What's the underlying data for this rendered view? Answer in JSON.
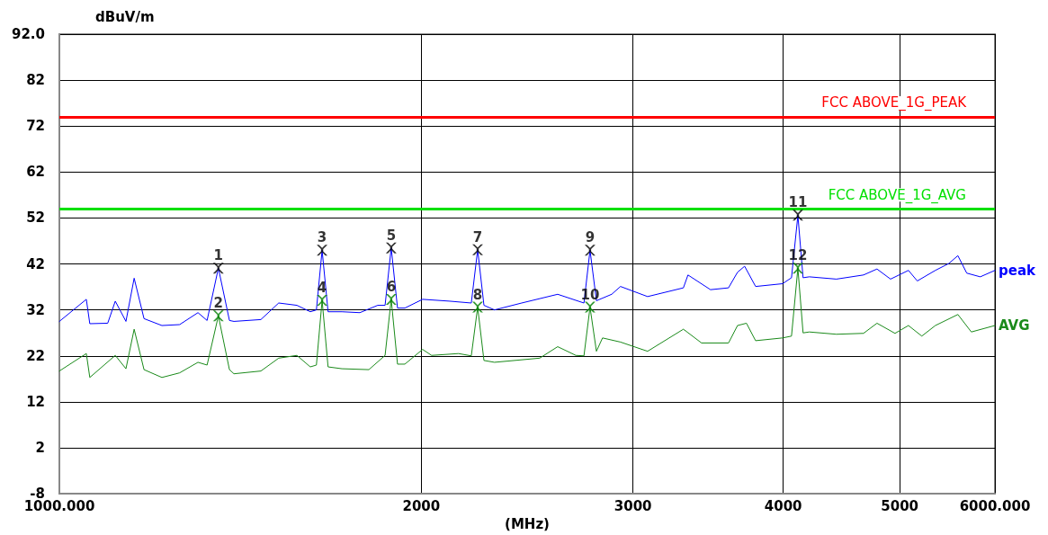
{
  "chart_data": {
    "type": "line",
    "xlabel": "(MHz)",
    "ylabel": "dBuV/m",
    "log": "x",
    "xlim": [
      1000,
      6000
    ],
    "xticks": [
      {
        "value": 1000,
        "label": "1000.000"
      },
      2000,
      3000,
      4000,
      5000,
      {
        "value": 6000,
        "label": "6000.000"
      }
    ],
    "ylim": [
      -8,
      92
    ],
    "yticks": [
      -8,
      2,
      12,
      22,
      32,
      42,
      52,
      62,
      72,
      82,
      {
        "value": 92,
        "label": "92.0"
      }
    ],
    "grid": true,
    "legend": false,
    "marker": "none",
    "line_style": "solid",
    "series": [
      {
        "name": "peak",
        "color": "#0000ff",
        "x": [
          1000,
          1053,
          1060,
          1097,
          1113,
          1136,
          1154,
          1176,
          1217,
          1259,
          1304,
          1327,
          1356,
          1385,
          1397,
          1471,
          1522,
          1576,
          1617,
          1636,
          1654,
          1673,
          1718,
          1778,
          1840,
          1866,
          1888,
          1911,
          1938,
          2005,
          2112,
          2201,
          2228,
          2255,
          2301,
          2424,
          2597,
          2731,
          2763,
          2797,
          2880,
          2929,
          3085,
          3304,
          3333,
          3480,
          3602,
          3665,
          3715,
          3794,
          3995,
          4064,
          4114,
          4155,
          4205,
          4429,
          4665,
          4787,
          4913,
          5084,
          5171,
          5353,
          5493,
          5589,
          5685,
          5834,
          6000
        ],
        "values": [
          29.5,
          34.3,
          29.0,
          29.1,
          33.9,
          29.5,
          38.9,
          30.1,
          28.6,
          28.8,
          31.4,
          29.7,
          41.1,
          29.7,
          29.5,
          29.9,
          33.5,
          33.0,
          31.6,
          32.0,
          45.0,
          31.6,
          31.6,
          31.4,
          33.0,
          33.0,
          45.5,
          32.4,
          32.4,
          34.3,
          33.9,
          33.5,
          45.1,
          33.0,
          32.0,
          33.5,
          35.4,
          33.5,
          45.0,
          34.0,
          35.4,
          37.1,
          34.9,
          36.8,
          39.6,
          36.4,
          36.8,
          40.2,
          41.5,
          37.1,
          37.7,
          39.0,
          52.6,
          39.0,
          39.2,
          38.7,
          39.6,
          40.9,
          38.7,
          40.6,
          38.3,
          40.6,
          42.1,
          43.8,
          40.0,
          39.2,
          40.6
        ]
      },
      {
        "name": "AVG",
        "color": "#1a8a1a",
        "x": [
          1000,
          1053,
          1060,
          1113,
          1136,
          1154,
          1176,
          1217,
          1259,
          1304,
          1327,
          1356,
          1385,
          1397,
          1471,
          1522,
          1576,
          1617,
          1636,
          1654,
          1673,
          1718,
          1809,
          1866,
          1888,
          1911,
          1938,
          2005,
          2040,
          2148,
          2201,
          2228,
          2255,
          2301,
          2509,
          2597,
          2689,
          2731,
          2763,
          2797,
          2830,
          2929,
          3085,
          3304,
          3421,
          3602,
          3665,
          3728,
          3794,
          3995,
          4064,
          4114,
          4155,
          4205,
          4429,
          4665,
          4787,
          4955,
          5084,
          5216,
          5353,
          5589,
          5735,
          6000
        ],
        "values": [
          18.7,
          22.5,
          17.3,
          22.1,
          19.2,
          27.8,
          19.0,
          17.3,
          18.3,
          20.6,
          20.0,
          30.7,
          19.0,
          18.1,
          18.7,
          21.5,
          22.1,
          19.6,
          20.0,
          34.1,
          19.6,
          19.2,
          19.0,
          22.1,
          34.3,
          20.2,
          20.2,
          23.4,
          22.1,
          22.5,
          22.0,
          32.6,
          21.0,
          20.6,
          21.5,
          24.0,
          22.1,
          22.0,
          32.6,
          23.0,
          25.9,
          25.0,
          23.0,
          27.8,
          24.8,
          24.8,
          28.6,
          29.1,
          25.3,
          25.9,
          26.3,
          41.1,
          27.0,
          27.2,
          26.7,
          26.9,
          29.1,
          26.9,
          28.6,
          26.3,
          28.6,
          31.0,
          27.2,
          28.6
        ]
      },
      {
        "type": "scatter",
        "marker": "cross",
        "color": "#000000",
        "x": [
          1356,
          1654,
          1888,
          2228,
          2763,
          4114
        ],
        "values": [
          41.1,
          45.0,
          45.5,
          45.1,
          45.0,
          52.6
        ]
      },
      {
        "type": "scatter",
        "marker": "cross",
        "color": "#008000",
        "x": [
          1356,
          1654,
          1888,
          2228,
          2763,
          4114
        ],
        "values": [
          30.7,
          34.1,
          34.3,
          32.6,
          32.6,
          41.1
        ]
      }
    ],
    "annotations": [
      {
        "text": "1",
        "x": 1356,
        "y": 41.1
      },
      {
        "text": "2",
        "x": 1356,
        "y": 30.7
      },
      {
        "text": "3",
        "x": 1654,
        "y": 45.0
      },
      {
        "text": "4",
        "x": 1654,
        "y": 34.1
      },
      {
        "text": "5",
        "x": 1888,
        "y": 45.5
      },
      {
        "text": "6",
        "x": 1888,
        "y": 34.3
      },
      {
        "text": "7",
        "x": 2228,
        "y": 45.1
      },
      {
        "text": "8",
        "x": 2228,
        "y": 32.6
      },
      {
        "text": "9",
        "x": 2763,
        "y": 45.0
      },
      {
        "text": "10",
        "x": 2763,
        "y": 32.6
      },
      {
        "text": "11",
        "x": 4114,
        "y": 52.6
      },
      {
        "text": "12",
        "x": 4114,
        "y": 41.1
      }
    ],
    "ref_lines": [
      {
        "axis": "y",
        "value": 74,
        "label": "FCC ABOVE_1G_PEAK",
        "color": "#ff0000",
        "line_style": "solid"
      },
      {
        "axis": "y",
        "value": 54,
        "label": "FCC ABOVE_1G_AVG",
        "color": "#00e000",
        "line_style": "solid"
      }
    ]
  }
}
